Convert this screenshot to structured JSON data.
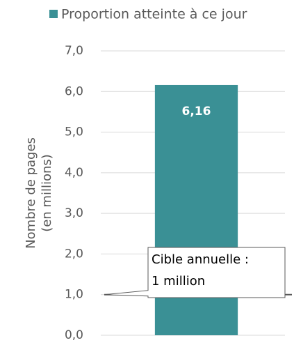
{
  "chart_data": {
    "type": "bar",
    "categories": [
      null
    ],
    "series": [
      {
        "name": "Proportion atteinte à ce jour",
        "color": "#3a9095",
        "values": [
          6.16
        ],
        "value_labels": [
          "6,16"
        ]
      }
    ],
    "ylim": [
      0,
      7
    ],
    "yticks": [
      {
        "value": 0,
        "label": "0,0"
      },
      {
        "value": 1,
        "label": "1,0"
      },
      {
        "value": 2,
        "label": "2,0"
      },
      {
        "value": 3,
        "label": "3,0"
      },
      {
        "value": 4,
        "label": "4,0"
      },
      {
        "value": 5,
        "label": "5,0"
      },
      {
        "value": 6,
        "label": "6,0"
      },
      {
        "value": 7,
        "label": "7,0"
      }
    ],
    "y_label": [
      "Nombre de pages",
      "(en millions)"
    ],
    "annotations": [
      {
        "value": 1,
        "text": [
          "Cible annuelle :",
          "1 million"
        ]
      }
    ],
    "grid": true,
    "legend": "top"
  }
}
